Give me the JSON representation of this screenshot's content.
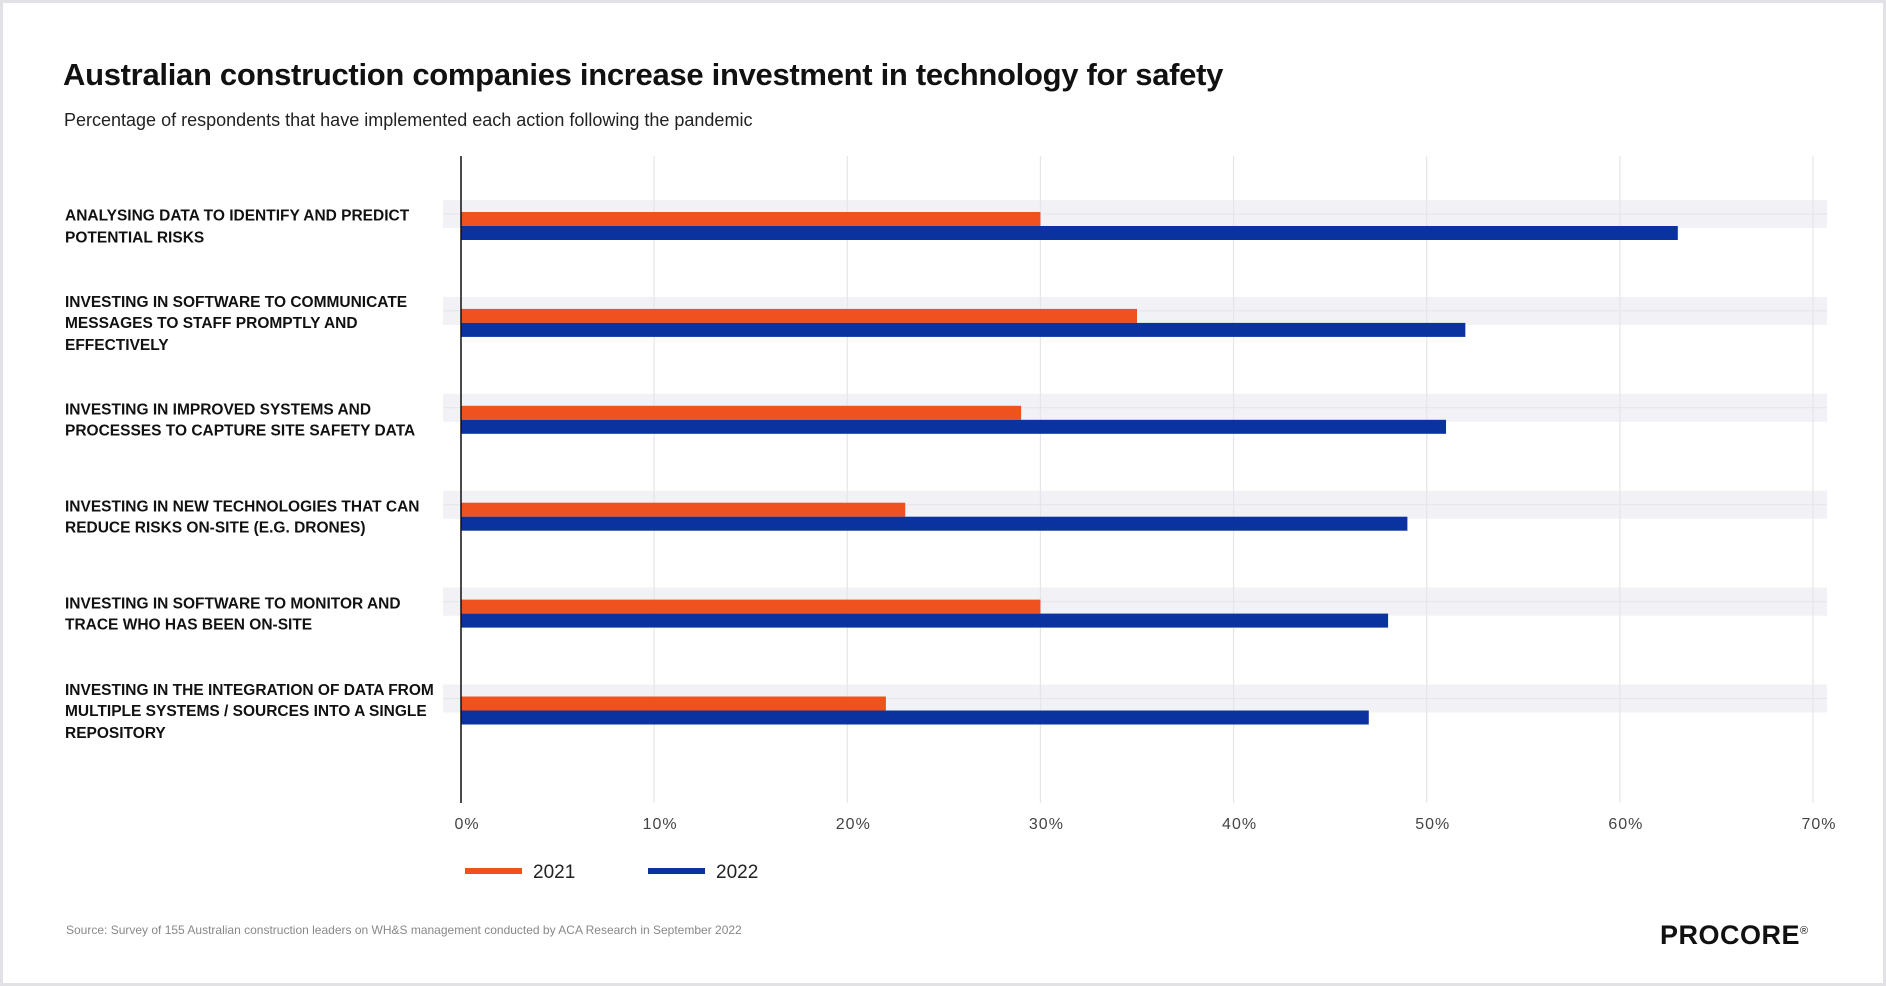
{
  "chart_data": {
    "type": "bar",
    "orientation": "horizontal",
    "title": "Australian construction companies increase investment in technology for safety",
    "subtitle": "Percentage of respondents that have implemented each action following the pandemic",
    "categories": [
      "ANALYSING DATA TO IDENTIFY AND PREDICT POTENTIAL RISKS",
      "INVESTING IN SOFTWARE TO COMMUNICATE MESSAGES TO STAFF PROMPTLY AND EFFECTIVELY",
      "INVESTING IN IMPROVED SYSTEMS AND PROCESSES TO CAPTURE SITE SAFETY DATA",
      "INVESTING IN NEW TECHNOLOGIES THAT CAN REDUCE RISKS ON-SITE (E.G. DRONES)",
      "INVESTING IN SOFTWARE TO MONITOR AND TRACE WHO HAS BEEN ON-SITE",
      "INVESTING IN THE INTEGRATION OF DATA FROM MULTIPLE SYSTEMS / SOURCES INTO A SINGLE REPOSITORY"
    ],
    "series": [
      {
        "name": "2021",
        "color": "#f0521f",
        "values": [
          30,
          35,
          29,
          23,
          30,
          22
        ]
      },
      {
        "name": "2022",
        "color": "#0a33a0",
        "values": [
          63,
          52,
          51,
          49,
          48,
          47
        ]
      }
    ],
    "xlim": [
      0,
      70
    ],
    "xticks": [
      {
        "value": 0,
        "label": "0%"
      },
      {
        "value": 10,
        "label": "10%"
      },
      {
        "value": 20,
        "label": "20%"
      },
      {
        "value": 30,
        "label": "30%"
      },
      {
        "value": 40,
        "label": "40%"
      },
      {
        "value": 50,
        "label": "50%"
      },
      {
        "value": 60,
        "label": "60%"
      },
      {
        "value": 70,
        "label": "70%"
      }
    ],
    "grid": true,
    "legend": "bottom-left",
    "source": "Source: Survey of 155 Australian construction leaders on WH&S management conducted by ACA Research in September 2022",
    "logo": "PROCORE",
    "logo_mark": "®"
  }
}
